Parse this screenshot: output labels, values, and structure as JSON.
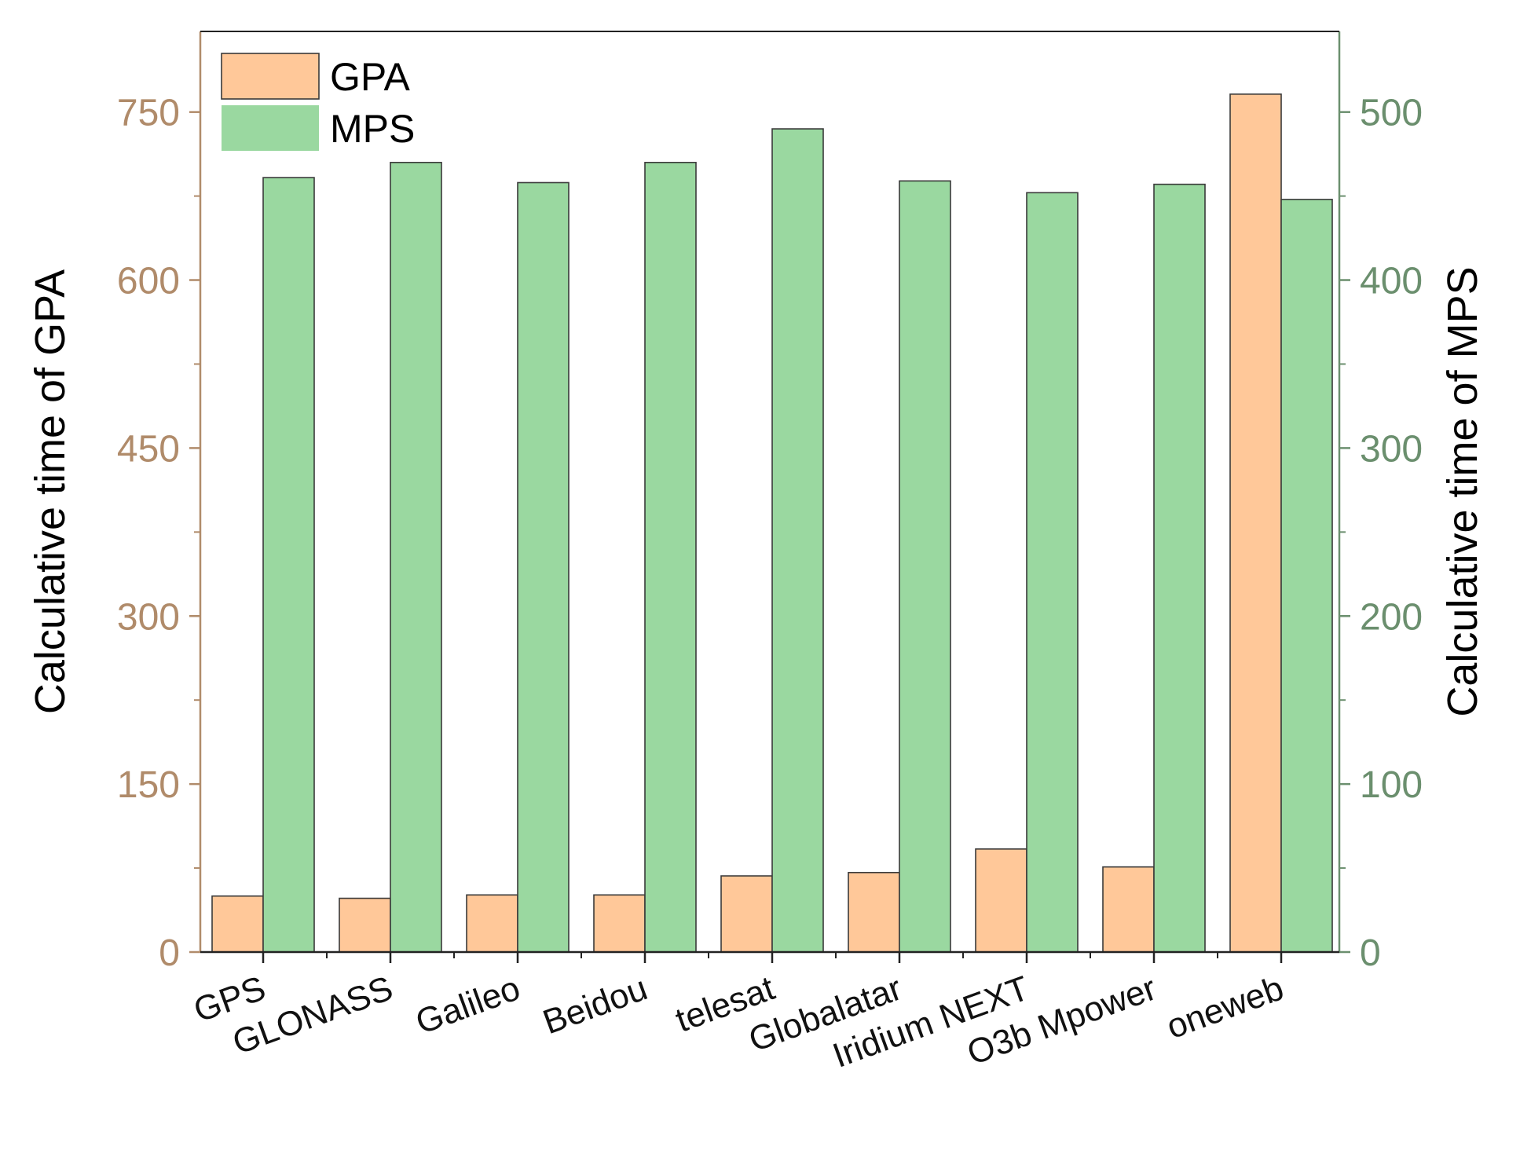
{
  "chart_data": {
    "type": "bar",
    "title": "",
    "xlabel": "",
    "categories": [
      "GPS",
      "GLONASS",
      "Galileo",
      "Beidou",
      "telesat",
      "Globalatar",
      "Iridium NEXT",
      "O3b Mpower",
      "oneweb"
    ],
    "series": [
      {
        "name": "GPA",
        "axis": "left",
        "color": "#FFC899",
        "values": [
          50,
          48,
          51,
          51,
          68,
          71,
          92,
          76,
          766
        ]
      },
      {
        "name": "MPS",
        "axis": "right",
        "color": "#9AD8A0",
        "values": [
          461,
          470,
          458,
          470,
          490,
          459,
          452,
          457,
          448
        ]
      }
    ],
    "left_axis": {
      "label": "Calculative time of GPA",
      "range": [
        0,
        822
      ],
      "ticks": [
        0,
        150,
        300,
        450,
        600,
        750
      ],
      "tick_labels": [
        "0",
        "150",
        "300",
        "450",
        "600",
        "750"
      ],
      "color": "#B08B6A"
    },
    "right_axis": {
      "label": "Calculative time of MPS",
      "range": [
        0,
        548
      ],
      "ticks": [
        0,
        100,
        200,
        300,
        400,
        500
      ],
      "tick_labels": [
        "0",
        "100",
        "200",
        "300",
        "400",
        "500"
      ],
      "color": "#6B8F6E"
    },
    "legend": {
      "position": "top-left",
      "entries": [
        "GPA",
        "MPS"
      ]
    },
    "grid": false
  }
}
